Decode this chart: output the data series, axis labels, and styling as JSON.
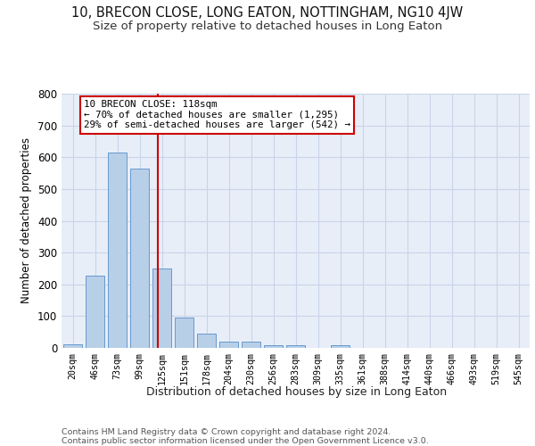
{
  "title": "10, BRECON CLOSE, LONG EATON, NOTTINGHAM, NG10 4JW",
  "subtitle": "Size of property relative to detached houses in Long Eaton",
  "xlabel": "Distribution of detached houses by size in Long Eaton",
  "ylabel": "Number of detached properties",
  "bar_labels": [
    "20sqm",
    "46sqm",
    "73sqm",
    "99sqm",
    "125sqm",
    "151sqm",
    "178sqm",
    "204sqm",
    "230sqm",
    "256sqm",
    "283sqm",
    "309sqm",
    "335sqm",
    "361sqm",
    "388sqm",
    "414sqm",
    "440sqm",
    "466sqm",
    "493sqm",
    "519sqm",
    "545sqm"
  ],
  "bar_values": [
    10,
    228,
    615,
    565,
    250,
    95,
    44,
    21,
    21,
    8,
    8,
    0,
    8,
    0,
    0,
    0,
    0,
    0,
    0,
    0,
    0
  ],
  "bar_color": "#b8cfe8",
  "bar_edge_color": "#6699cc",
  "vline_color": "#cc0000",
  "annotation_text": "10 BRECON CLOSE: 118sqm\n← 70% of detached houses are smaller (1,295)\n29% of semi-detached houses are larger (542) →",
  "annotation_box_color": "#cc0000",
  "ylim": [
    0,
    800
  ],
  "yticks": [
    0,
    100,
    200,
    300,
    400,
    500,
    600,
    700,
    800
  ],
  "grid_color": "#c8d4e8",
  "bg_color": "#e8eef8",
  "footer": "Contains HM Land Registry data © Crown copyright and database right 2024.\nContains public sector information licensed under the Open Government Licence v3.0.",
  "title_fontsize": 10.5,
  "subtitle_fontsize": 9.5
}
